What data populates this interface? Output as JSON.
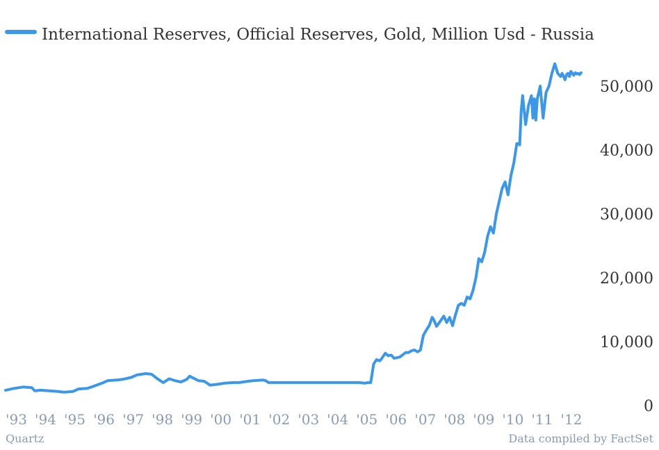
{
  "colors": {
    "line": "#3b97e8",
    "axis_text": "#333333",
    "x_tick_text": "#8a9bb1",
    "footer_text": "#8a9bb1"
  },
  "footer": {
    "left": "Quartz",
    "right": "Data compiled by FactSet"
  },
  "chart_data": {
    "type": "line",
    "title": "",
    "xlabel": "",
    "ylabel": "",
    "legend_position": "top-left",
    "grid": false,
    "xlim": [
      1993.0,
      2012.75
    ],
    "ylim": [
      0,
      55000
    ],
    "y_ticks": [
      0,
      10000,
      20000,
      30000,
      40000,
      50000
    ],
    "y_tick_labels": [
      "0",
      "10,000",
      "20,000",
      "30,000",
      "40,000",
      "50,000"
    ],
    "x_ticks": [
      1993,
      1994,
      1995,
      1996,
      1997,
      1998,
      1999,
      2000,
      2001,
      2002,
      2003,
      2004,
      2005,
      2006,
      2007,
      2008,
      2009,
      2010,
      2011,
      2012
    ],
    "x_tick_labels": [
      "'93",
      "'94",
      "'95",
      "'96",
      "'97",
      "'98",
      "'99",
      "'00",
      "'01",
      "'02",
      "'03",
      "'04",
      "'05",
      "'06",
      "'07",
      "'08",
      "'09",
      "'10",
      "'11",
      "'12"
    ],
    "series": [
      {
        "name": "International Reserves, Official Reserves, Gold, Million Usd - Russia",
        "x": [
          1993.0,
          1993.3,
          1993.6,
          1993.9,
          1994.0,
          1994.2,
          1994.5,
          1994.8,
          1995.0,
          1995.3,
          1995.5,
          1995.8,
          1996.0,
          1996.3,
          1996.5,
          1996.8,
          1997.0,
          1997.3,
          1997.5,
          1997.8,
          1998.0,
          1998.2,
          1998.4,
          1998.6,
          1998.8,
          1999.0,
          1999.2,
          1999.3,
          1999.6,
          1999.8,
          2000.0,
          2000.2,
          2000.5,
          2000.8,
          2001.0,
          2001.3,
          2001.5,
          2001.8,
          2001.9,
          2002.0,
          2002.5,
          2003.0,
          2003.5,
          2004.0,
          2004.5,
          2005.0,
          2005.1,
          2005.3,
          2005.4,
          2005.5,
          2005.6,
          2005.7,
          2005.8,
          2005.85,
          2006.0,
          2006.1,
          2006.2,
          2006.3,
          2006.5,
          2006.7,
          2006.8,
          2006.9,
          2007.0,
          2007.1,
          2007.2,
          2007.3,
          2007.4,
          2007.5,
          2007.6,
          2007.65,
          2007.75,
          2007.85,
          2008.0,
          2008.1,
          2008.2,
          2008.3,
          2008.4,
          2008.5,
          2008.6,
          2008.7,
          2008.8,
          2008.9,
          2009.0,
          2009.1,
          2009.2,
          2009.3,
          2009.4,
          2009.5,
          2009.6,
          2009.7,
          2009.8,
          2009.9,
          2010.0,
          2010.1,
          2010.2,
          2010.3,
          2010.4,
          2010.5,
          2010.55,
          2010.6,
          2010.65,
          2010.7,
          2010.8,
          2010.9,
          2011.0,
          2011.05,
          2011.1,
          2011.15,
          2011.2,
          2011.25,
          2011.3,
          2011.35,
          2011.4,
          2011.45,
          2011.5,
          2011.6,
          2011.7,
          2011.8,
          2011.9,
          2012.0,
          2012.05,
          2012.1,
          2012.15,
          2012.2,
          2012.25,
          2012.3,
          2012.35,
          2012.4,
          2012.45,
          2012.5,
          2012.55,
          2012.6,
          2012.65,
          2012.7
        ],
        "values": [
          2400,
          2700,
          2900,
          2800,
          2300,
          2400,
          2300,
          2200,
          2100,
          2200,
          2600,
          2700,
          3000,
          3500,
          3900,
          4000,
          4100,
          4400,
          4800,
          5000,
          4900,
          4200,
          3600,
          4200,
          3900,
          3700,
          4100,
          4600,
          3900,
          3800,
          3200,
          3300,
          3500,
          3600,
          3600,
          3800,
          3900,
          4000,
          3900,
          3600,
          3600,
          3600,
          3600,
          3600,
          3600,
          3600,
          3600,
          3500,
          3600,
          3600,
          6500,
          7200,
          7000,
          7200,
          8200,
          7800,
          7900,
          7400,
          7600,
          8300,
          8300,
          8600,
          8700,
          8400,
          8700,
          11000,
          11800,
          12500,
          13800,
          13500,
          12400,
          13000,
          14000,
          13000,
          13800,
          12500,
          14200,
          15700,
          16000,
          15700,
          17000,
          16700,
          18000,
          20000,
          23000,
          22500,
          24000,
          26500,
          28000,
          27000,
          30000,
          32000,
          34000,
          35000,
          33000,
          36000,
          38000,
          41000,
          41000,
          40800,
          46000,
          48500,
          44000,
          47000,
          48500,
          45000,
          48000,
          44700,
          48000,
          49000,
          50000,
          47500,
          45000,
          47000,
          49000,
          50000,
          52000,
          53500,
          52000,
          51500,
          52000,
          51500,
          51000,
          51800,
          52000,
          51500,
          52300,
          52000,
          51700,
          52100,
          51900,
          52000,
          51800,
          52100
        ]
      }
    ]
  }
}
